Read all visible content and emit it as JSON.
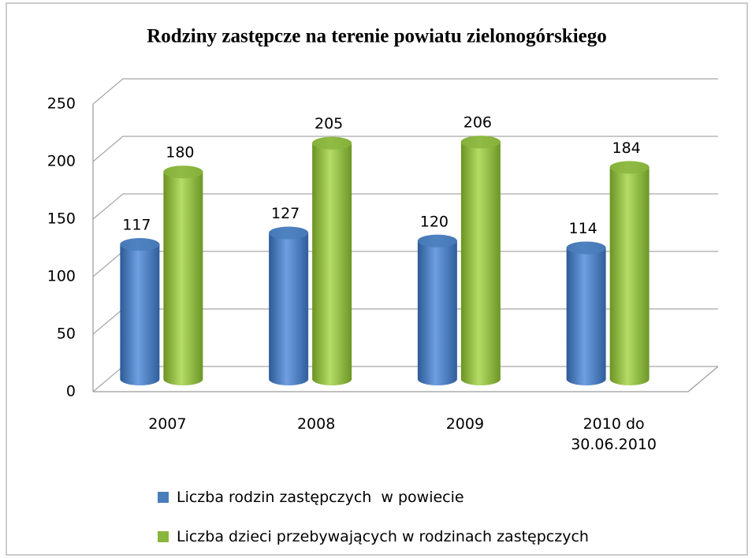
{
  "chart_data": {
    "type": "bar",
    "title": "Rodziny zastępcze na terenie powiatu zielonogórskiego",
    "categories": [
      "2007",
      "2008",
      "2009",
      "2010 do 30.06.2010"
    ],
    "series": [
      {
        "name": "Liczba rodzin zastępczych  w powiecie",
        "color": "#4a7ebb",
        "values": [
          117,
          127,
          120,
          114
        ]
      },
      {
        "name": "Liczba dzieci przebywających w rodzinach zastępczych",
        "color": "#8ab53e",
        "values": [
          180,
          205,
          206,
          184
        ]
      }
    ],
    "ylim": [
      0,
      250
    ],
    "yticks": [
      0,
      50,
      100,
      150,
      200,
      250
    ],
    "grid": true,
    "legend": "bottom"
  }
}
